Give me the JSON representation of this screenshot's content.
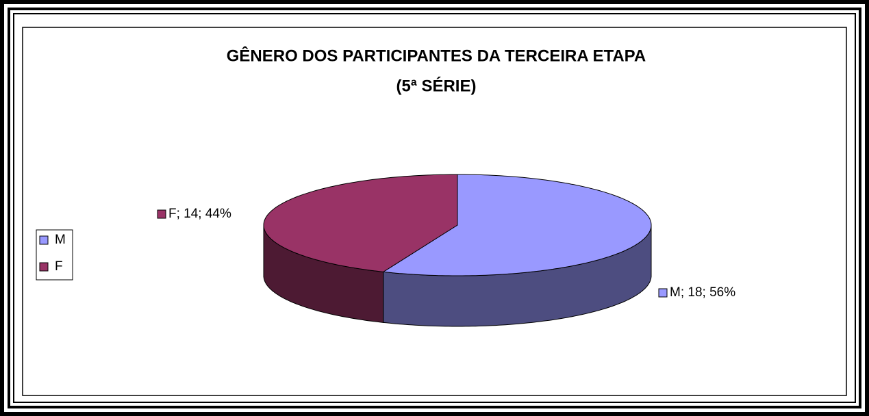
{
  "chart_data": {
    "type": "pie3d",
    "title": [
      "GÊNERO DOS PARTICIPANTES DA TERCEIRA ETAPA",
      "(5ª SÉRIE)"
    ],
    "categories": [
      "M",
      "F"
    ],
    "values": [
      18,
      14
    ],
    "value_labels": [
      "M; 18; 56%",
      "F; 14; 44%"
    ],
    "colors": [
      "#9999ff",
      "#993366"
    ],
    "side_colors": [
      "#4d4d80",
      "#4d1a33"
    ],
    "legend": "left"
  }
}
